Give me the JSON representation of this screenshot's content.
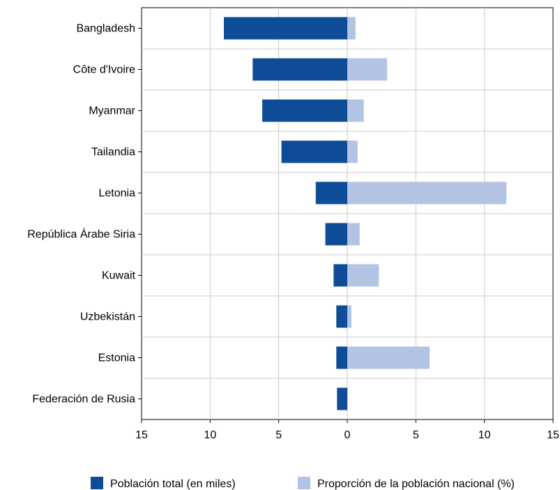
{
  "chart_data": {
    "type": "bar",
    "orientation": "horizontal-diverging",
    "categories": [
      "Bangladesh",
      "Côte d'Ivoire",
      "Myanmar",
      "Tailandia",
      "Letonia",
      "República Árabe Siria",
      "Kuwait",
      "Uzbekistán",
      "Estonia",
      "Federación de Rusia"
    ],
    "series": [
      {
        "name": "Población total (en miles)",
        "color": "#0f4c97",
        "direction": "left",
        "values": [
          9.0,
          6.9,
          6.2,
          4.8,
          2.3,
          1.6,
          1.0,
          0.8,
          0.8,
          0.75
        ]
      },
      {
        "name": "Proporción de la población nacional (%)",
        "color": "#b3c3e4",
        "direction": "right",
        "values": [
          0.6,
          2.9,
          1.2,
          0.75,
          11.6,
          0.9,
          2.3,
          0.3,
          6.0,
          0.0
        ]
      }
    ],
    "x_ticks": [
      "15",
      "10",
      "5",
      "0",
      "5",
      "10",
      "15"
    ],
    "xlim": [
      -15,
      15
    ],
    "grid": true,
    "legend_position": "bottom"
  }
}
